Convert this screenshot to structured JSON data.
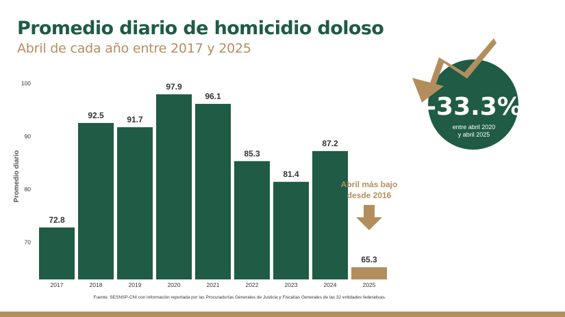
{
  "header": {
    "title": "Promedio diario de homicidio doloso",
    "subtitle": "Abril de cada año entre 2017 y 2025"
  },
  "badge": {
    "value": "-33.3%",
    "line1": "entre abril 2020",
    "line2": "y abril 2025"
  },
  "callout": {
    "line1": "Abril más bajo",
    "line2": "desde 2016"
  },
  "source": "Fuente: SESNSP-CNI con información reportada por las Procuradurías Generales de Justicia y Fiscalías Generales de las 32 entidades federativas.",
  "colors": {
    "bar": "#1f5b45",
    "highlight": "#b38e5d",
    "text": "#333333"
  },
  "chart_data": {
    "type": "bar",
    "categories": [
      "2017",
      "2018",
      "2019",
      "2020",
      "2021",
      "2022",
      "2023",
      "2024",
      "2025"
    ],
    "values": [
      72.8,
      92.5,
      91.7,
      97.9,
      96.1,
      85.3,
      81.4,
      87.2,
      65.3
    ],
    "value_labels": [
      "72.8",
      "92.5",
      "91.7",
      "97.9",
      "96.1",
      "85.3",
      "81.4",
      "87.2",
      "65.3"
    ],
    "highlight_index": 8,
    "ylabel": "Promedio diario",
    "yticks": [
      70,
      80,
      90,
      100
    ],
    "ylim": [
      63,
      101
    ],
    "grid": false
  }
}
